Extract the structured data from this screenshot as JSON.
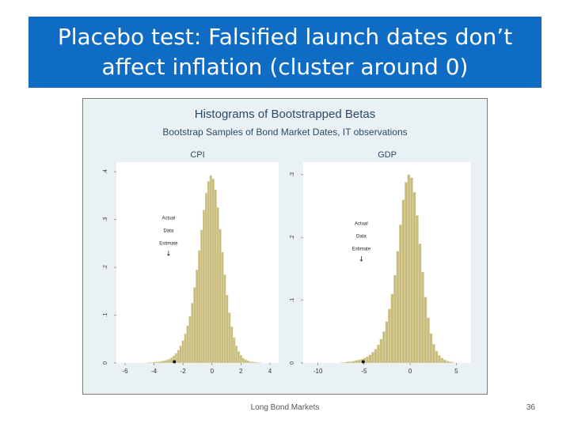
{
  "slide": {
    "title": "Placebo test: Falsified launch dates don’t affect inflation (cluster around 0)",
    "footer_text": "Long Bond Markets",
    "page_number": "36"
  },
  "colors": {
    "title_band": "#0e6cc4",
    "bar_fill": "#c8bd7c",
    "bar_stroke": "#e9e4c8",
    "heading": "#2b4a64",
    "panel_bg": "#ffffff",
    "figure_bg": "#eaf1f5"
  },
  "chart_data": [
    {
      "type": "bar",
      "title": "Histograms of Bootstrapped Betas",
      "subtitle": "Bootstrap Samples of Bond Market Dates, IT observations",
      "panel_title": "CPI",
      "xlim": [
        -6.6,
        4.6
      ],
      "ylim": [
        0,
        4.2
      ],
      "x_ticks": [
        -6,
        -4,
        -2,
        0,
        2,
        4
      ],
      "y_ticks": [
        0,
        1,
        2,
        3,
        4
      ],
      "x_tick_labels": [
        "-6",
        "-4",
        "-2",
        "0",
        "2",
        "4"
      ],
      "y_tick_labels": [
        "0",
        ".1",
        ".2",
        ".3",
        ".4"
      ],
      "bin_width": 0.16,
      "bin_centers": [
        -4.4,
        -4.24,
        -4.08,
        -3.92,
        -3.76,
        -3.6,
        -3.44,
        -3.28,
        -3.12,
        -2.96,
        -2.8,
        -2.64,
        -2.48,
        -2.32,
        -2.16,
        -2.0,
        -1.84,
        -1.68,
        -1.52,
        -1.36,
        -1.2,
        -1.04,
        -0.88,
        -0.72,
        -0.56,
        -0.4,
        -0.24,
        -0.08,
        0.08,
        0.24,
        0.4,
        0.56,
        0.72,
        0.88,
        1.04,
        1.2,
        1.36,
        1.52,
        1.68,
        1.84,
        2.0,
        2.16,
        2.32,
        2.48,
        2.64,
        2.8,
        2.96,
        3.12,
        3.28
      ],
      "values": [
        0.01,
        0.01,
        0.01,
        0.02,
        0.02,
        0.03,
        0.04,
        0.05,
        0.06,
        0.08,
        0.11,
        0.15,
        0.2,
        0.27,
        0.36,
        0.47,
        0.61,
        0.78,
        0.98,
        1.25,
        1.58,
        1.95,
        2.35,
        2.78,
        3.2,
        3.55,
        3.8,
        3.92,
        3.85,
        3.62,
        3.25,
        2.8,
        2.32,
        1.85,
        1.42,
        1.05,
        0.76,
        0.53,
        0.36,
        0.24,
        0.16,
        0.1,
        0.07,
        0.05,
        0.03,
        0.02,
        0.02,
        0.01,
        0.01
      ],
      "annotation": {
        "lines": [
          "Actual",
          "Data",
          "Estimate"
        ],
        "arrow": "↓",
        "x": -3.0,
        "y": 3.0
      },
      "actual_estimate": -2.6
    },
    {
      "type": "bar",
      "panel_title": "GDP",
      "xlim": [
        -11.6,
        6.6
      ],
      "ylim": [
        0,
        3.2
      ],
      "x_ticks": [
        -10,
        -5,
        0,
        5
      ],
      "y_ticks": [
        0,
        1,
        2,
        3
      ],
      "x_tick_labels": [
        "-10",
        "-5",
        "0",
        "5"
      ],
      "y_tick_labels": [
        "0",
        ".1",
        ".2",
        ".3"
      ],
      "bin_width": 0.3,
      "bin_centers": [
        -7.35,
        -7.05,
        -6.75,
        -6.45,
        -6.15,
        -5.85,
        -5.55,
        -5.25,
        -4.95,
        -4.65,
        -4.35,
        -4.05,
        -3.75,
        -3.45,
        -3.15,
        -2.85,
        -2.55,
        -2.25,
        -1.95,
        -1.65,
        -1.35,
        -1.05,
        -0.75,
        -0.45,
        -0.15,
        0.15,
        0.45,
        0.75,
        1.05,
        1.35,
        1.65,
        1.95,
        2.25,
        2.55,
        2.85,
        3.15,
        3.45,
        3.75,
        4.05,
        4.35,
        4.65
      ],
      "values": [
        0.01,
        0.01,
        0.02,
        0.02,
        0.03,
        0.04,
        0.05,
        0.06,
        0.08,
        0.1,
        0.13,
        0.17,
        0.22,
        0.29,
        0.38,
        0.5,
        0.66,
        0.86,
        1.1,
        1.4,
        1.78,
        2.2,
        2.6,
        2.88,
        3.0,
        2.95,
        2.72,
        2.35,
        1.9,
        1.45,
        1.05,
        0.72,
        0.47,
        0.3,
        0.19,
        0.12,
        0.08,
        0.05,
        0.03,
        0.02,
        0.01
      ],
      "annotation": {
        "lines": [
          "Actual",
          "Data",
          "Estimate"
        ],
        "arrow": "↓",
        "x": -5.3,
        "y": 2.2
      },
      "actual_estimate": -5.1
    }
  ]
}
